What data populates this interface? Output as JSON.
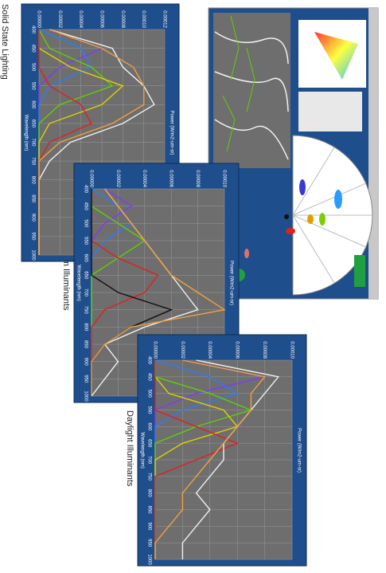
{
  "captions": [
    "Solid State Lighting",
    "Warm Illuminants",
    "Daylight Illuminants"
  ],
  "chart_data": [
    {
      "type": "line",
      "title": "Power (W/m2-um-sr)",
      "x_label": "Wavelength (nm)",
      "x": [
        400,
        450,
        500,
        550,
        600,
        650,
        700,
        750,
        800,
        850,
        900,
        950,
        1000
      ],
      "xlim": [
        400,
        1000
      ],
      "xticks": [
        400,
        450,
        500,
        550,
        600,
        650,
        700,
        750,
        800,
        850,
        900,
        950,
        1000
      ],
      "ylim": [
        0,
        0.00012
      ],
      "yticks": [
        {
          "value": 0,
          "label": "0.00000"
        },
        {
          "value": 2e-05,
          "label": "0.00002"
        },
        {
          "value": 4e-05,
          "label": "0.00004"
        },
        {
          "value": 6e-05,
          "label": "0.00006"
        },
        {
          "value": 8e-05,
          "label": "0.00008"
        },
        {
          "value": 0.0001,
          "label": "0.00010"
        },
        {
          "value": 0.00012,
          "label": "0.00012"
        }
      ],
      "grid": true,
      "series": [
        {
          "color": "#7a3cff",
          "values": [
            1e-05,
            6e-05,
            2e-05,
            0,
            0,
            0,
            0,
            0,
            0,
            0,
            0,
            0,
            0
          ]
        },
        {
          "color": "#2a7bff",
          "values": [
            0,
            4e-05,
            5e-05,
            1e-05,
            0,
            0,
            0,
            0,
            0,
            0,
            0,
            0,
            0
          ]
        },
        {
          "color": "#5fd000",
          "values": [
            0,
            1e-05,
            5e-05,
            7e-05,
            2e-05,
            0,
            0,
            0,
            0,
            0,
            0,
            0,
            0
          ]
        },
        {
          "color": "#e0d000",
          "values": [
            0,
            0,
            3e-05,
            8e-05,
            6e-05,
            1e-05,
            0,
            0,
            0,
            0,
            0,
            0,
            0
          ]
        },
        {
          "color": "#e02020",
          "values": [
            0,
            0,
            0,
            1e-05,
            4e-05,
            5e-05,
            1e-05,
            0,
            0,
            0,
            0,
            0,
            0
          ]
        },
        {
          "color": "#f0f0f0",
          "values": [
            1e-05,
            7e-05,
            8e-05,
            0.0001,
            0.00011,
            8e-05,
            3e-05,
            1e-05,
            0,
            0,
            0,
            0,
            0
          ]
        },
        {
          "color": "#f0a040",
          "values": [
            1e-05,
            6e-05,
            9e-05,
            0.0001,
            0.0001,
            7e-05,
            2e-05,
            0,
            0,
            0,
            0,
            0,
            0
          ]
        }
      ]
    },
    {
      "type": "line",
      "title": "Power (W/m2-um-sr)",
      "x_label": "Wavelength (nm)",
      "x": [
        400,
        450,
        500,
        550,
        600,
        650,
        700,
        750,
        800,
        850,
        900,
        950,
        1000
      ],
      "xlim": [
        400,
        1000
      ],
      "xticks": [
        400,
        450,
        500,
        550,
        600,
        650,
        700,
        750,
        800,
        850,
        900,
        950,
        1000
      ],
      "ylim": [
        0,
        0.0001
      ],
      "yticks": [
        {
          "value": 0,
          "label": "0.00000"
        },
        {
          "value": 2e-05,
          "label": "0.00002"
        },
        {
          "value": 4e-05,
          "label": "0.00004"
        },
        {
          "value": 6e-05,
          "label": "0.00006"
        },
        {
          "value": 8e-05,
          "label": "0.00008"
        },
        {
          "value": 0.0001,
          "label": "0.00010"
        }
      ],
      "grid": true,
      "series": [
        {
          "color": "#7a3cff",
          "values": [
            1e-05,
            3e-05,
            1e-05,
            0,
            0,
            0,
            0,
            0,
            0,
            0,
            0,
            0,
            0
          ]
        },
        {
          "color": "#2a7bff",
          "values": [
            0,
            2e-05,
            3e-05,
            1e-05,
            0,
            0,
            0,
            0,
            0,
            0,
            0,
            0,
            0
          ]
        },
        {
          "color": "#5fd000",
          "values": [
            0,
            0,
            2e-05,
            4e-05,
            2e-05,
            0,
            0,
            0,
            0,
            0,
            0,
            0,
            0
          ]
        },
        {
          "color": "#e02020",
          "values": [
            0,
            0,
            0,
            0,
            2e-05,
            5e-05,
            4e-05,
            1e-05,
            0,
            0,
            0,
            0,
            0
          ]
        },
        {
          "color": "#111111",
          "values": [
            0,
            0,
            0,
            0,
            0,
            0,
            2e-05,
            6e-05,
            3e-05,
            1e-05,
            0,
            0,
            0
          ]
        },
        {
          "color": "#f0f0f0",
          "values": [
            1e-05,
            2e-05,
            3e-05,
            4e-05,
            5e-05,
            6e-05,
            7e-05,
            8e-05,
            4e-05,
            1e-05,
            2e-05,
            1e-05,
            0
          ]
        },
        {
          "color": "#f0a040",
          "values": [
            1e-05,
            2e-05,
            3e-05,
            4e-05,
            5e-05,
            6e-05,
            8e-05,
            0.0001,
            3e-05,
            1e-05,
            0,
            0,
            0
          ]
        }
      ]
    },
    {
      "type": "line",
      "title": "Power (W/m2-um-sr)",
      "x_label": "Wavelength (nm)",
      "x": [
        400,
        450,
        500,
        550,
        600,
        650,
        700,
        750,
        800,
        850,
        900,
        950,
        1000
      ],
      "xlim": [
        400,
        1000
      ],
      "xticks": [
        400,
        450,
        500,
        550,
        600,
        650,
        700,
        750,
        800,
        850,
        900,
        950,
        1000
      ],
      "ylim": [
        0,
        0.0001
      ],
      "yticks": [
        {
          "value": 0,
          "label": "0.00000"
        },
        {
          "value": 2e-05,
          "label": "0.00002"
        },
        {
          "value": 4e-05,
          "label": "0.00004"
        },
        {
          "value": 6e-05,
          "label": "0.00006"
        },
        {
          "value": 8e-05,
          "label": "0.00008"
        },
        {
          "value": 0.0001,
          "label": "0.00010"
        }
      ],
      "grid": true,
      "series": [
        {
          "color": "#7a3cff",
          "values": [
            2e-05,
            8e-05,
            3e-05,
            0,
            0,
            0,
            0,
            0,
            0,
            0,
            0,
            0,
            0
          ]
        },
        {
          "color": "#2a7bff",
          "values": [
            0,
            4e-05,
            6e-05,
            2e-05,
            0,
            0,
            0,
            0,
            0,
            0,
            0,
            0,
            0
          ]
        },
        {
          "color": "#5fd000",
          "values": [
            0,
            0,
            4e-05,
            7e-05,
            3e-05,
            0,
            0,
            0,
            0,
            0,
            0,
            0,
            0
          ]
        },
        {
          "color": "#e0d000",
          "values": [
            0,
            0,
            1e-05,
            5e-05,
            6e-05,
            2e-05,
            0,
            0,
            0,
            0,
            0,
            0,
            0
          ]
        },
        {
          "color": "#e02020",
          "values": [
            0,
            0,
            0,
            0,
            3e-05,
            6e-05,
            3e-05,
            0,
            0,
            0,
            0,
            0,
            0
          ]
        },
        {
          "color": "#f0f0f0",
          "values": [
            3e-05,
            9e-05,
            8e-05,
            7e-05,
            6e-05,
            5e-05,
            5e-05,
            4e-05,
            3e-05,
            4e-05,
            3e-05,
            2e-05,
            2e-05
          ]
        },
        {
          "color": "#f0a040",
          "values": [
            2e-05,
            8e-05,
            7e-05,
            7e-05,
            6e-05,
            5e-05,
            4e-05,
            3e-05,
            2e-05,
            2e-05,
            1e-05,
            0,
            0
          ]
        }
      ]
    }
  ]
}
